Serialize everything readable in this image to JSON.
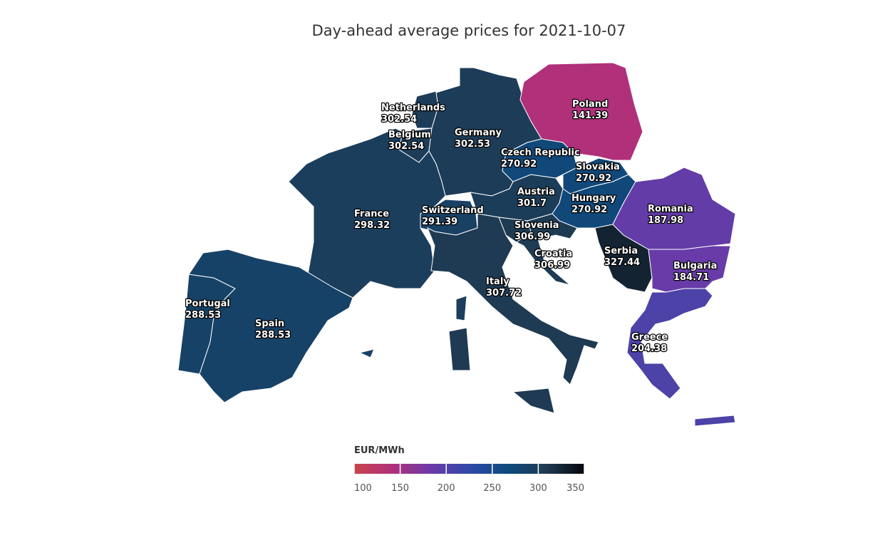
{
  "chart_data": {
    "type": "choropleth",
    "title": "Day-ahead average prices for 2021-10-07",
    "countries": [
      {
        "name": "Netherlands",
        "value": 302.54
      },
      {
        "name": "Belgium",
        "value": 302.54
      },
      {
        "name": "Germany",
        "value": 302.53
      },
      {
        "name": "Poland",
        "value": 141.39
      },
      {
        "name": "Czech Republic",
        "value": 270.92
      },
      {
        "name": "Slovakia",
        "value": 270.92
      },
      {
        "name": "Austria",
        "value": 301.7
      },
      {
        "name": "Hungary",
        "value": 270.92
      },
      {
        "name": "France",
        "value": 298.32
      },
      {
        "name": "Switzerland",
        "value": 291.39
      },
      {
        "name": "Slovenia",
        "value": 306.99
      },
      {
        "name": "Croatia",
        "value": 306.99
      },
      {
        "name": "Serbia",
        "value": 327.44
      },
      {
        "name": "Romania",
        "value": 187.98
      },
      {
        "name": "Italy",
        "value": 307.72
      },
      {
        "name": "Bulgaria",
        "value": 184.71
      },
      {
        "name": "Portugal",
        "value": 288.53
      },
      {
        "name": "Spain",
        "value": 288.53
      },
      {
        "name": "Greece",
        "value": 204.38
      }
    ],
    "colorbar": {
      "title": "EUR/MWh",
      "range": [
        100,
        350
      ],
      "ticks": [
        100,
        150,
        200,
        250,
        300,
        350
      ],
      "colors": [
        "#c8444a",
        "#b0307a",
        "#6a3aa8",
        "#2f4aa8",
        "#0e4a7e",
        "#1f3a52",
        "#05070c"
      ]
    }
  }
}
